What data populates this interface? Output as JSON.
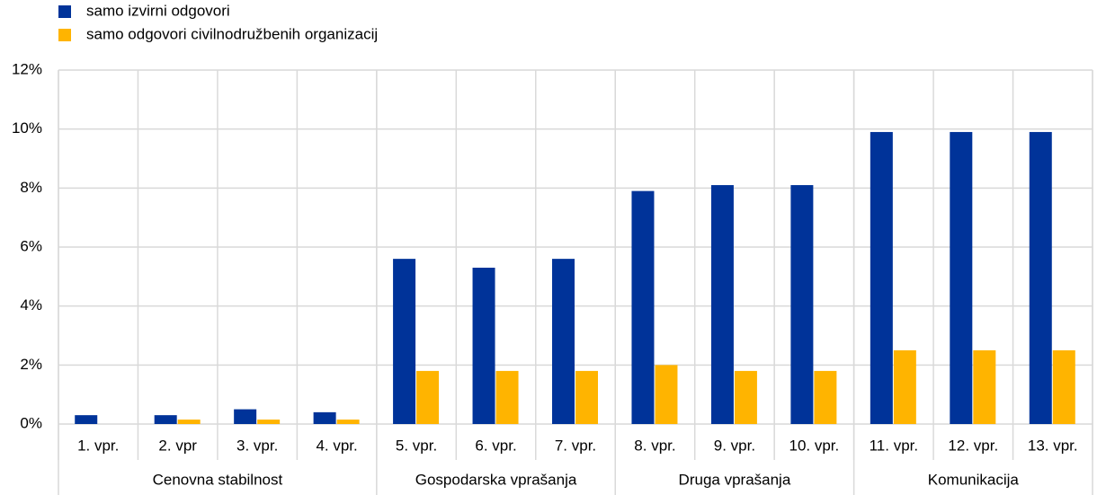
{
  "chart_data": {
    "type": "bar",
    "categories": [
      "1. vpr.",
      "2. vpr",
      "3. vpr.",
      "4. vpr.",
      "5. vpr.",
      "6. vpr.",
      "7. vpr.",
      "8. vpr.",
      "9. vpr.",
      "10. vpr.",
      "11. vpr.",
      "12. vpr.",
      "13. vpr."
    ],
    "groups": [
      {
        "name": "Cenovna stabilnost",
        "size": 4
      },
      {
        "name": "Gospodarska vprašanja",
        "size": 3
      },
      {
        "name": "Druga vprašanja",
        "size": 3
      },
      {
        "name": "Komunikacija",
        "size": 3
      }
    ],
    "series": [
      {
        "name": "samo izvirni odgovori",
        "color": "#003399",
        "values": [
          0.3,
          0.3,
          0.5,
          0.4,
          5.6,
          5.3,
          5.6,
          7.9,
          8.1,
          8.1,
          9.9,
          9.9,
          9.9
        ]
      },
      {
        "name": "samo odgovori civilnodružbenih organizacij",
        "color": "#ffb400",
        "values": [
          0,
          0.15,
          0.15,
          0.15,
          1.8,
          1.8,
          1.8,
          2.0,
          1.8,
          1.8,
          2.5,
          2.5,
          2.5
        ]
      }
    ],
    "ylim": [
      0,
      12
    ],
    "yticks": [
      {
        "value": 0,
        "label": "0%"
      },
      {
        "value": 2,
        "label": "2%"
      },
      {
        "value": 4,
        "label": "4%"
      },
      {
        "value": 6,
        "label": "6%"
      },
      {
        "value": 8,
        "label": "8%"
      },
      {
        "value": 10,
        "label": "10%"
      },
      {
        "value": 12,
        "label": "12%"
      }
    ],
    "grid": true
  }
}
